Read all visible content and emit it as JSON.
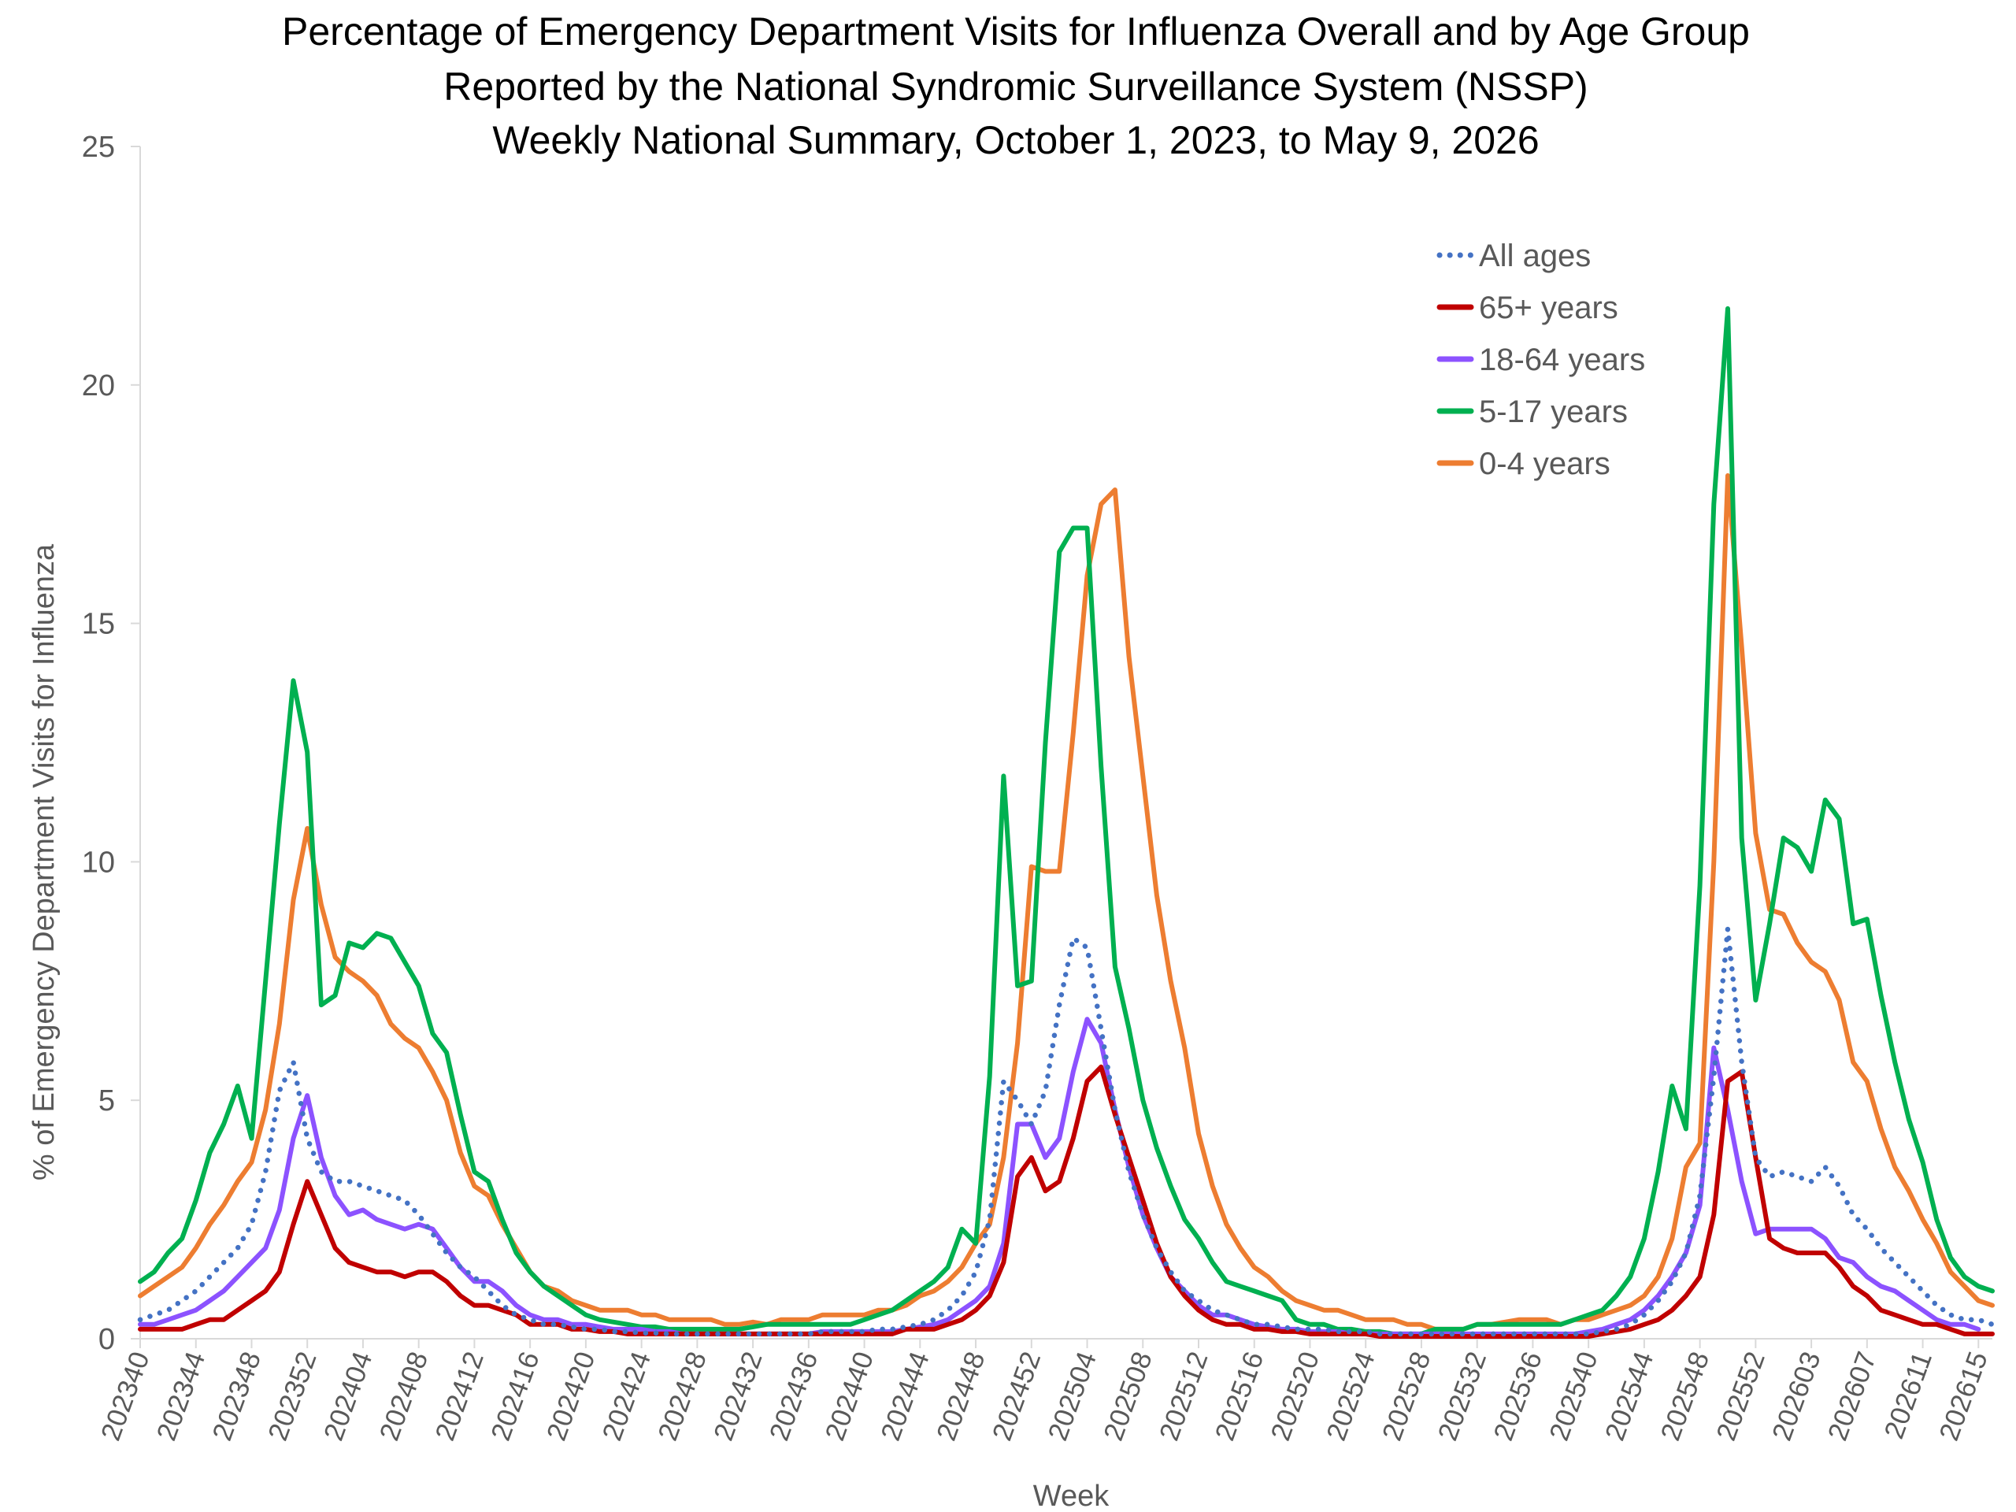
{
  "chart_data": {
    "type": "line",
    "title": [
      "Percentage of Emergency Department Visits for Influenza Overall and by Age Group",
      "Reported by the National Syndromic Surveillance System (NSSP)",
      "Weekly National Summary, October 1, 2023, to May 9, 2026"
    ],
    "xlabel": "Week",
    "ylabel": "% of Emergency Department Visits for Influenza",
    "ylim": [
      0,
      25
    ],
    "yticks": [
      0,
      5,
      10,
      15,
      20,
      25
    ],
    "xtick_labels": [
      "202340",
      "202344",
      "202348",
      "202352",
      "202404",
      "202408",
      "202412",
      "202416",
      "202420",
      "202424",
      "202428",
      "202432",
      "202436",
      "202440",
      "202444",
      "202448",
      "202452",
      "202504",
      "202508",
      "202512",
      "202516",
      "202520",
      "202524",
      "202528",
      "202532",
      "202536",
      "202540",
      "202544",
      "202548",
      "202552",
      "202603",
      "202607",
      "202611",
      "202615"
    ],
    "grid": false,
    "legend_position": "top-right",
    "series": [
      {
        "name": "All ages",
        "color": "#4472C4",
        "style": "dotted",
        "values": [
          0.4,
          0.5,
          0.6,
          0.8,
          1.0,
          1.3,
          1.6,
          1.9,
          2.4,
          3.5,
          5.2,
          5.8,
          4.2,
          3.5,
          3.3,
          3.3,
          3.2,
          3.1,
          3.0,
          2.9,
          2.6,
          2.2,
          1.8,
          1.5,
          1.3,
          1.0,
          0.7,
          0.5,
          0.4,
          0.3,
          0.3,
          0.25,
          0.2,
          0.2,
          0.15,
          0.15,
          0.12,
          0.12,
          0.1,
          0.1,
          0.1,
          0.1,
          0.1,
          0.1,
          0.1,
          0.1,
          0.1,
          0.1,
          0.1,
          0.15,
          0.15,
          0.15,
          0.15,
          0.2,
          0.2,
          0.25,
          0.3,
          0.4,
          0.6,
          0.9,
          1.4,
          2.5,
          5.4,
          5.0,
          4.5,
          5.2,
          7.0,
          8.4,
          8.2,
          6.5,
          4.8,
          3.5,
          2.6,
          1.9,
          1.4,
          1.0,
          0.8,
          0.6,
          0.5,
          0.4,
          0.3,
          0.3,
          0.25,
          0.2,
          0.2,
          0.2,
          0.15,
          0.15,
          0.15,
          0.1,
          0.1,
          0.1,
          0.1,
          0.1,
          0.1,
          0.1,
          0.1,
          0.1,
          0.1,
          0.1,
          0.1,
          0.1,
          0.1,
          0.1,
          0.1,
          0.15,
          0.2,
          0.3,
          0.5,
          0.8,
          1.2,
          1.8,
          3.0,
          5.5,
          8.6,
          5.8,
          3.8,
          3.4,
          3.5,
          3.4,
          3.3,
          3.6,
          3.2,
          2.6,
          2.3,
          1.9,
          1.6,
          1.3,
          1.0,
          0.7,
          0.5,
          0.4,
          0.4,
          0.3
        ]
      },
      {
        "name": "65+ years",
        "color": "#C00000",
        "style": "solid",
        "values": [
          0.2,
          0.2,
          0.2,
          0.2,
          0.3,
          0.4,
          0.4,
          0.6,
          0.8,
          1.0,
          1.4,
          2.4,
          3.3,
          2.6,
          1.9,
          1.6,
          1.5,
          1.4,
          1.4,
          1.3,
          1.4,
          1.4,
          1.2,
          0.9,
          0.7,
          0.7,
          0.6,
          0.5,
          0.3,
          0.3,
          0.3,
          0.2,
          0.2,
          0.15,
          0.15,
          0.1,
          0.1,
          0.1,
          0.1,
          0.1,
          0.1,
          0.1,
          0.1,
          0.1,
          0.1,
          0.1,
          0.1,
          0.1,
          0.1,
          0.1,
          0.1,
          0.1,
          0.1,
          0.1,
          0.1,
          0.2,
          0.2,
          0.2,
          0.3,
          0.4,
          0.6,
          0.9,
          1.6,
          3.4,
          3.8,
          3.1,
          3.3,
          4.2,
          5.4,
          5.7,
          4.7,
          3.8,
          2.9,
          2.0,
          1.3,
          0.9,
          0.6,
          0.4,
          0.3,
          0.3,
          0.2,
          0.2,
          0.15,
          0.15,
          0.1,
          0.1,
          0.1,
          0.1,
          0.1,
          0.05,
          0.05,
          0.05,
          0.05,
          0.05,
          0.05,
          0.05,
          0.05,
          0.05,
          0.05,
          0.05,
          0.05,
          0.05,
          0.05,
          0.05,
          0.05,
          0.1,
          0.15,
          0.2,
          0.3,
          0.4,
          0.6,
          0.9,
          1.3,
          2.6,
          5.4,
          5.6,
          3.8,
          2.1,
          1.9,
          1.8,
          1.8,
          1.8,
          1.5,
          1.1,
          0.9,
          0.6,
          0.5,
          0.4,
          0.3,
          0.3,
          0.2,
          0.1,
          0.1,
          0.1
        ]
      },
      {
        "name": "18-64 years",
        "color": "#8C52FF",
        "style": "solid",
        "values": [
          0.3,
          0.3,
          0.4,
          0.5,
          0.6,
          0.8,
          1.0,
          1.3,
          1.6,
          1.9,
          2.7,
          4.2,
          5.1,
          3.8,
          3.0,
          2.6,
          2.7,
          2.5,
          2.4,
          2.3,
          2.4,
          2.3,
          1.9,
          1.5,
          1.2,
          1.2,
          1.0,
          0.7,
          0.5,
          0.4,
          0.4,
          0.3,
          0.3,
          0.25,
          0.2,
          0.2,
          0.2,
          0.15,
          0.15,
          0.1,
          0.1,
          0.1,
          0.1,
          0.1,
          0.1,
          0.1,
          0.1,
          0.1,
          0.1,
          0.15,
          0.15,
          0.15,
          0.15,
          0.15,
          0.15,
          0.2,
          0.25,
          0.3,
          0.4,
          0.6,
          0.8,
          1.1,
          2.0,
          4.5,
          4.5,
          3.8,
          4.2,
          5.6,
          6.7,
          6.2,
          4.8,
          3.6,
          2.6,
          1.9,
          1.3,
          1.0,
          0.7,
          0.5,
          0.5,
          0.4,
          0.3,
          0.25,
          0.2,
          0.2,
          0.15,
          0.15,
          0.15,
          0.1,
          0.1,
          0.1,
          0.1,
          0.1,
          0.1,
          0.1,
          0.1,
          0.1,
          0.1,
          0.1,
          0.1,
          0.1,
          0.1,
          0.1,
          0.1,
          0.1,
          0.15,
          0.2,
          0.3,
          0.4,
          0.6,
          0.9,
          1.3,
          1.8,
          2.8,
          6.1,
          4.8,
          3.3,
          2.2,
          2.3,
          2.3,
          2.3,
          2.3,
          2.1,
          1.7,
          1.6,
          1.3,
          1.1,
          1.0,
          0.8,
          0.6,
          0.4,
          0.3,
          0.3,
          0.2
        ]
      },
      {
        "name": "5-17 years",
        "color": "#00B050",
        "style": "solid",
        "values": [
          1.2,
          1.4,
          1.8,
          2.1,
          2.9,
          3.9,
          4.5,
          5.3,
          4.2,
          7.5,
          10.8,
          13.8,
          12.3,
          7.0,
          7.2,
          8.3,
          8.2,
          8.5,
          8.4,
          7.9,
          7.4,
          6.4,
          6.0,
          4.7,
          3.5,
          3.3,
          2.5,
          1.8,
          1.4,
          1.1,
          0.9,
          0.7,
          0.5,
          0.4,
          0.35,
          0.3,
          0.25,
          0.25,
          0.2,
          0.2,
          0.2,
          0.2,
          0.2,
          0.2,
          0.25,
          0.3,
          0.3,
          0.3,
          0.3,
          0.3,
          0.3,
          0.3,
          0.4,
          0.5,
          0.6,
          0.8,
          1.0,
          1.2,
          1.5,
          2.3,
          2.0,
          5.5,
          11.8,
          7.4,
          7.5,
          12.5,
          16.5,
          17.0,
          17.0,
          12.0,
          7.8,
          6.5,
          5.0,
          4.0,
          3.2,
          2.5,
          2.1,
          1.6,
          1.2,
          1.1,
          1.0,
          0.9,
          0.8,
          0.4,
          0.3,
          0.3,
          0.2,
          0.2,
          0.15,
          0.15,
          0.1,
          0.1,
          0.1,
          0.2,
          0.2,
          0.2,
          0.3,
          0.3,
          0.3,
          0.3,
          0.3,
          0.3,
          0.3,
          0.4,
          0.5,
          0.6,
          0.9,
          1.3,
          2.1,
          3.5,
          5.3,
          4.4,
          9.5,
          17.5,
          21.6,
          10.5,
          7.1,
          8.7,
          10.5,
          10.3,
          9.8,
          11.3,
          10.9,
          8.7,
          8.8,
          7.2,
          5.8,
          4.6,
          3.7,
          2.5,
          1.7,
          1.3,
          1.1,
          1.0
        ]
      },
      {
        "name": "0-4 years",
        "color": "#ED7D31",
        "style": "solid",
        "values": [
          0.9,
          1.1,
          1.3,
          1.5,
          1.9,
          2.4,
          2.8,
          3.3,
          3.7,
          4.8,
          6.6,
          9.2,
          10.7,
          9.1,
          8.0,
          7.7,
          7.5,
          7.2,
          6.6,
          6.3,
          6.1,
          5.6,
          5.0,
          3.9,
          3.2,
          3.0,
          2.4,
          1.9,
          1.4,
          1.1,
          1.0,
          0.8,
          0.7,
          0.6,
          0.6,
          0.6,
          0.5,
          0.5,
          0.4,
          0.4,
          0.4,
          0.4,
          0.3,
          0.3,
          0.35,
          0.3,
          0.4,
          0.4,
          0.4,
          0.5,
          0.5,
          0.5,
          0.5,
          0.6,
          0.6,
          0.7,
          0.9,
          1.0,
          1.2,
          1.5,
          2.0,
          2.4,
          3.8,
          6.2,
          9.9,
          9.8,
          9.8,
          12.7,
          16.0,
          17.5,
          17.8,
          14.3,
          11.8,
          9.3,
          7.5,
          6.1,
          4.3,
          3.2,
          2.4,
          1.9,
          1.5,
          1.3,
          1.0,
          0.8,
          0.7,
          0.6,
          0.6,
          0.5,
          0.4,
          0.4,
          0.4,
          0.3,
          0.3,
          0.2,
          0.2,
          0.2,
          0.3,
          0.3,
          0.35,
          0.4,
          0.4,
          0.4,
          0.3,
          0.4,
          0.4,
          0.5,
          0.6,
          0.7,
          0.9,
          1.3,
          2.1,
          3.6,
          4.1,
          10.0,
          18.1,
          14.5,
          10.6,
          9.0,
          8.9,
          8.3,
          7.9,
          7.7,
          7.1,
          5.8,
          5.4,
          4.4,
          3.6,
          3.1,
          2.5,
          2.0,
          1.4,
          1.1,
          0.8,
          0.7
        ]
      }
    ]
  }
}
